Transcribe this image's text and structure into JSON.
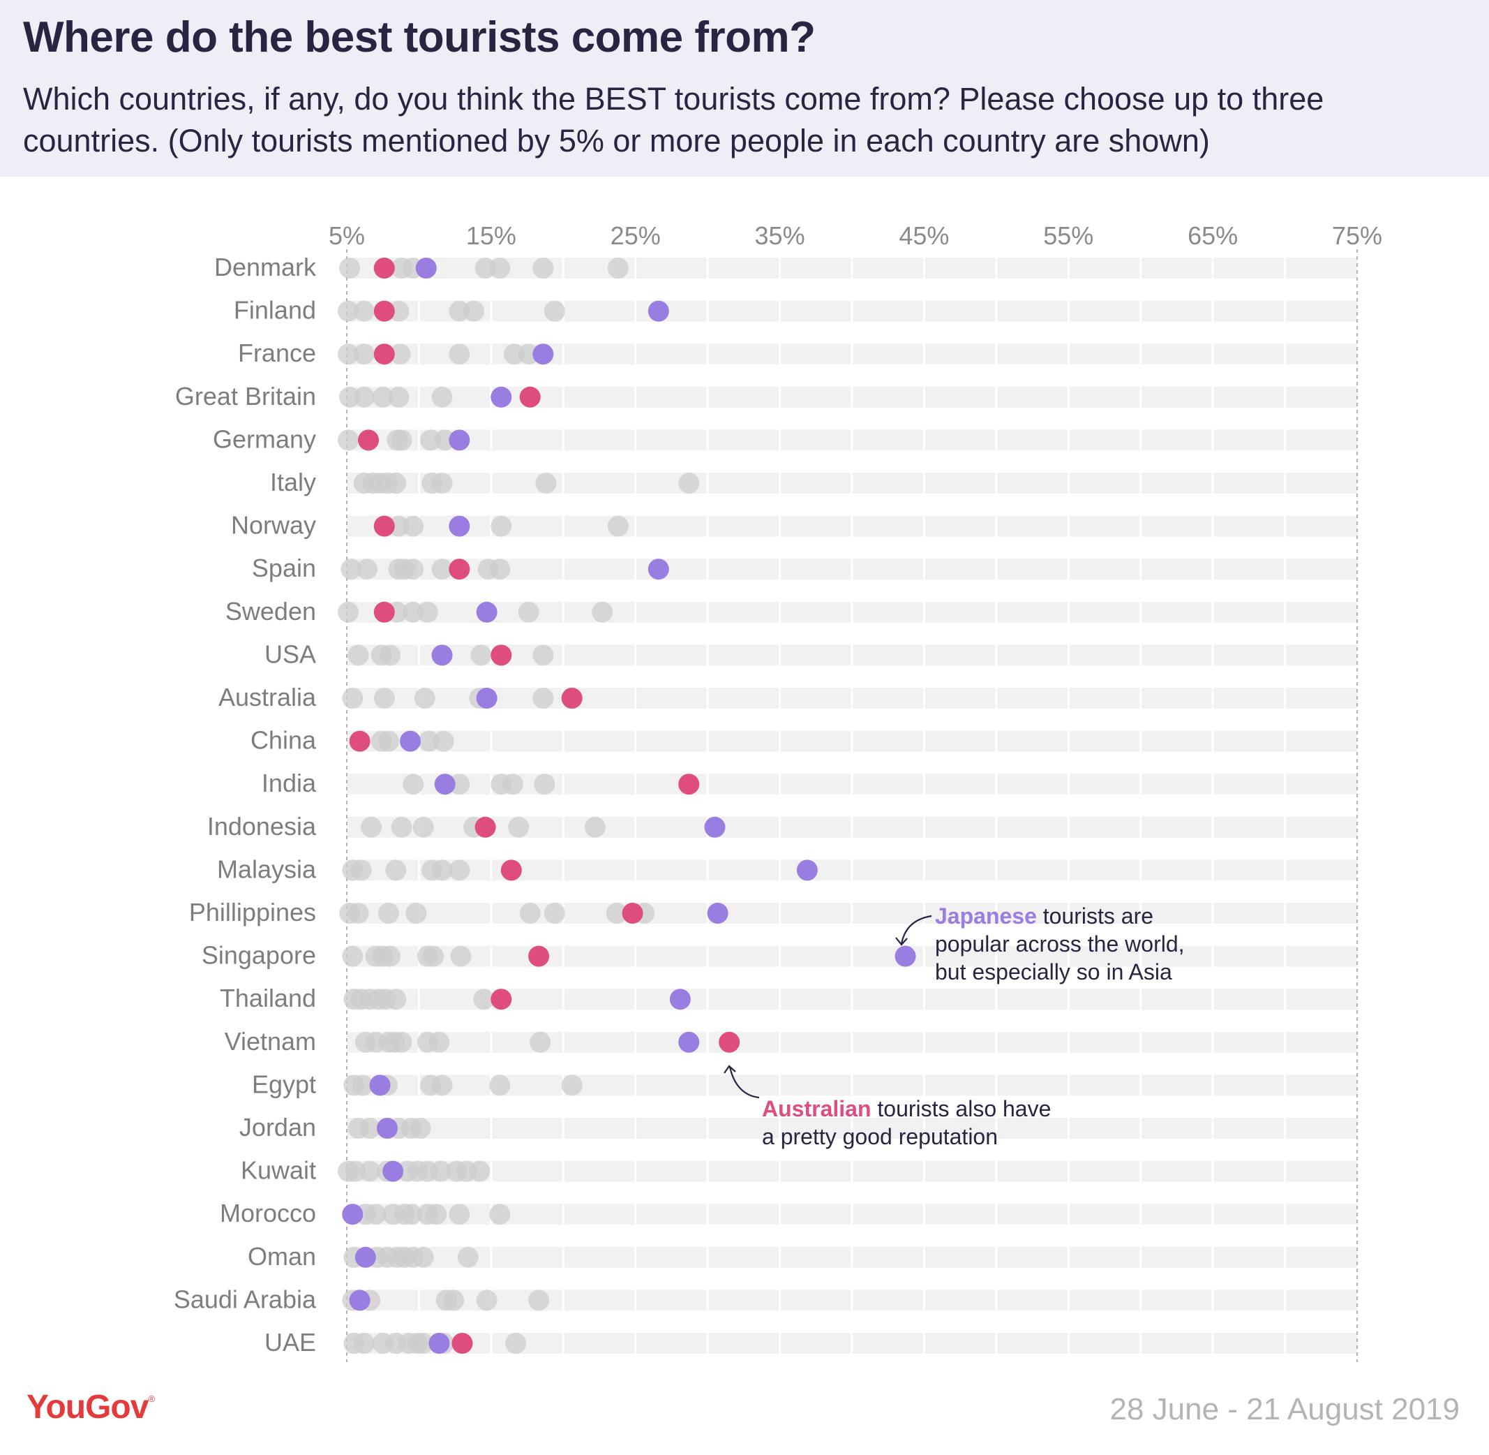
{
  "header": {
    "title": "Where do the best tourists come from?",
    "subtitle": "Which countries, if any, do you think the BEST tourists come from? Please choose up to three countries. (Only tourists mentioned by 5% or more people in each country are shown)"
  },
  "colors": {
    "japan": "#9a7de0",
    "australia": "#df4d7e",
    "other": "#cccccc",
    "track": "#f1f1f1",
    "header_bg": "#efedf6"
  },
  "annotations": {
    "japan": {
      "highlight": "Japanese",
      "line1_rest": " tourists are",
      "line2": "popular across the world,",
      "line3": "but especially so in Asia"
    },
    "australia": {
      "highlight": "Australian",
      "line1_rest": " tourists also have",
      "line2": "a pretty good reputation"
    }
  },
  "footer": {
    "brand": "YouGov",
    "brand_mark": "®",
    "date_range": "28 June - 21 August 2019"
  },
  "chart_data": {
    "type": "scatter",
    "title": "Where do the best tourists come from?",
    "xlabel": "",
    "ylabel": "",
    "xlim": [
      5,
      75
    ],
    "x_ticks": [
      5,
      15,
      25,
      35,
      45,
      55,
      65,
      75
    ],
    "x_tick_labels": [
      "5%",
      "15%",
      "25%",
      "35%",
      "45%",
      "55%",
      "65%",
      "75%"
    ],
    "legend": [
      {
        "name": "Japanese tourists",
        "color": "#9a7de0"
      },
      {
        "name": "Australian tourists",
        "color": "#df4d7e"
      }
    ],
    "rows": [
      {
        "country": "Denmark",
        "japan": 10.5,
        "australia": 7.6,
        "others": [
          5.2,
          8.8,
          9.6,
          14.6,
          15.6,
          18.6,
          23.8
        ]
      },
      {
        "country": "Finland",
        "japan": 26.6,
        "australia": 7.6,
        "others": [
          5.1,
          6.2,
          8.6,
          12.8,
          13.8,
          19.4
        ]
      },
      {
        "country": "France",
        "japan": 18.6,
        "australia": 7.6,
        "others": [
          5.1,
          6.2,
          8.7,
          12.8,
          16.6,
          17.6
        ]
      },
      {
        "country": "Great Britain",
        "japan": 15.7,
        "australia": 17.7,
        "others": [
          5.2,
          6.2,
          7.5,
          8.6,
          11.6
        ]
      },
      {
        "country": "Germany",
        "japan": 12.8,
        "australia": 6.5,
        "others": [
          5.1,
          8.5,
          8.8,
          10.8,
          11.8
        ]
      },
      {
        "country": "Italy",
        "japan": null,
        "australia": null,
        "others": [
          6.2,
          6.8,
          7.3,
          7.8,
          8.4,
          10.9,
          11.6,
          18.8,
          28.7
        ]
      },
      {
        "country": "Norway",
        "japan": 12.8,
        "australia": 7.6,
        "others": [
          8.6,
          9.6,
          15.7,
          23.8
        ]
      },
      {
        "country": "Spain",
        "japan": 26.6,
        "australia": 12.8,
        "others": [
          5.3,
          6.4,
          8.6,
          9.0,
          9.6,
          11.6,
          14.8,
          15.6
        ]
      },
      {
        "country": "Sweden",
        "japan": 14.7,
        "australia": 7.6,
        "others": [
          5.1,
          8.5,
          9.6,
          10.6,
          17.6,
          22.7
        ]
      },
      {
        "country": "USA",
        "japan": 11.6,
        "australia": 15.7,
        "others": [
          5.8,
          7.4,
          8.0,
          14.3,
          18.6
        ]
      },
      {
        "country": "Australia",
        "japan": 14.7,
        "australia": 20.6,
        "others": [
          5.4,
          7.6,
          10.4,
          14.2,
          18.6
        ]
      },
      {
        "country": "China",
        "japan": 9.4,
        "australia": 5.9,
        "others": [
          7.4,
          7.9,
          10.7,
          11.7
        ]
      },
      {
        "country": "India",
        "japan": 11.8,
        "australia": 28.7,
        "others": [
          9.6,
          12.8,
          15.7,
          16.5,
          18.7
        ]
      },
      {
        "country": "Indonesia",
        "japan": 30.5,
        "australia": 14.6,
        "others": [
          6.7,
          8.8,
          10.3,
          13.8,
          16.9,
          22.2
        ]
      },
      {
        "country": "Malaysia",
        "japan": 36.9,
        "australia": 16.4,
        "others": [
          5.4,
          6.0,
          8.4,
          10.9,
          11.6,
          12.8
        ]
      },
      {
        "country": "Phillippines",
        "japan": 30.7,
        "australia": 24.8,
        "others": [
          5.2,
          5.8,
          7.9,
          9.8,
          17.7,
          19.4,
          23.7,
          25.6
        ]
      },
      {
        "country": "Singapore",
        "japan": 43.7,
        "australia": 18.3,
        "others": [
          5.4,
          7.0,
          7.5,
          8.0,
          10.6,
          11.0,
          12.9
        ]
      },
      {
        "country": "Thailand",
        "japan": 28.1,
        "australia": 15.7,
        "others": [
          5.5,
          6.0,
          6.6,
          7.2,
          7.7,
          8.4,
          14.5
        ]
      },
      {
        "country": "Vietnam",
        "japan": 28.7,
        "australia": 31.5,
        "others": [
          6.3,
          7.0,
          7.9,
          8.3,
          8.8,
          10.6,
          11.4,
          18.4
        ]
      },
      {
        "country": "Egypt",
        "japan": 7.3,
        "australia": null,
        "others": [
          5.5,
          6.1,
          7.8,
          10.8,
          11.6,
          15.6,
          20.6
        ]
      },
      {
        "country": "Jordan",
        "japan": 7.8,
        "australia": null,
        "others": [
          5.8,
          6.6,
          8.6,
          9.5,
          10.1
        ]
      },
      {
        "country": "Kuwait",
        "japan": 8.2,
        "australia": null,
        "others": [
          5.1,
          5.6,
          6.6,
          7.8,
          9.2,
          9.9,
          10.6,
          11.5,
          12.6,
          13.3,
          14.2
        ]
      },
      {
        "country": "Morocco",
        "japan": 5.4,
        "australia": null,
        "others": [
          6.3,
          7.0,
          8.2,
          9.0,
          9.5,
          10.6,
          11.2,
          12.8,
          15.6
        ]
      },
      {
        "country": "Oman",
        "japan": 6.3,
        "australia": null,
        "others": [
          5.5,
          7.1,
          7.8,
          8.5,
          9.0,
          9.6,
          10.3,
          13.4
        ]
      },
      {
        "country": "Saudi Arabia",
        "japan": 5.9,
        "australia": null,
        "others": [
          5.4,
          6.6,
          11.9,
          12.4,
          14.7,
          18.3
        ]
      },
      {
        "country": "UAE",
        "japan": 11.4,
        "australia": 13.0,
        "others": [
          5.5,
          6.2,
          7.5,
          8.4,
          9.3,
          9.9,
          10.3,
          11.7,
          16.7
        ]
      }
    ]
  }
}
